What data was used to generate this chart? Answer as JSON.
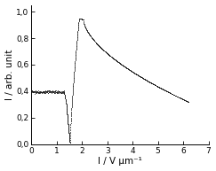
{
  "xlabel": "I / V μm⁻¹",
  "ylabel": "I / arb. unit",
  "xlim": [
    0,
    7
  ],
  "ylim": [
    0.0,
    1.05
  ],
  "xticks": [
    0,
    1,
    2,
    3,
    4,
    5,
    6,
    7
  ],
  "yticks": [
    0.0,
    0.2,
    0.4,
    0.6,
    0.8,
    1.0
  ],
  "ytick_labels": [
    "0,0",
    "0,2",
    "0,4",
    "0,6",
    "0,8",
    "1,0"
  ],
  "xtick_labels": [
    "0",
    "1",
    "2",
    "3",
    "4",
    "5",
    "6",
    "7"
  ],
  "dot_color": "#1a1a1a",
  "background_color": "#ffffff",
  "tick_fontsize": 6.5,
  "label_fontsize": 7.5
}
